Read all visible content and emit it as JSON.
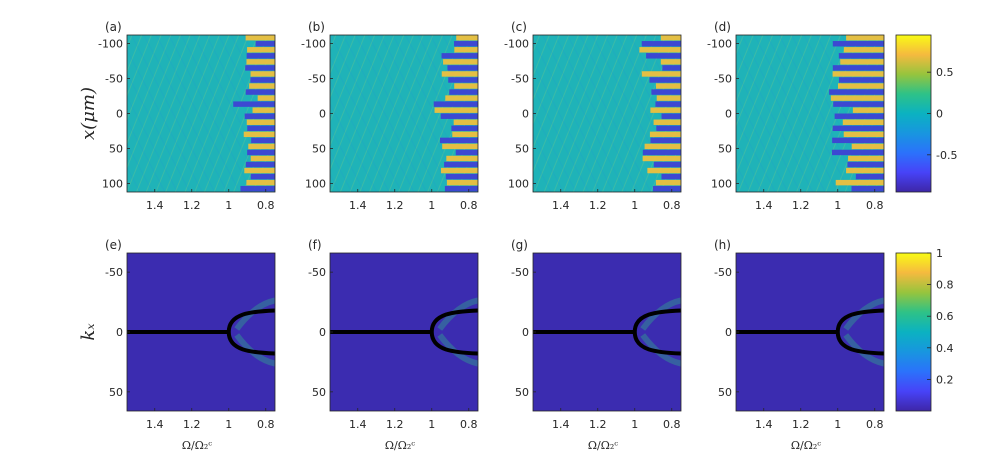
{
  "chart_data": [
    {
      "type": "heatmap",
      "row": "top",
      "ylabel": "x(μm)",
      "xlabel": "",
      "x_reversed": true,
      "y_reversed": true,
      "xlim": [
        1.55,
        0.75
      ],
      "ylim": [
        -112,
        112
      ],
      "xticks": [
        "1.4",
        "1.2",
        "1",
        "0.8"
      ],
      "xtick_values": [
        1.4,
        1.2,
        1.0,
        0.8
      ],
      "yticks": [
        "-100",
        "-50",
        "0",
        "50",
        "100"
      ],
      "ytick_values": [
        -100,
        -50,
        0,
        50,
        100
      ],
      "colorbar": {
        "ticks": [
          "0.5",
          "0",
          "-0.5"
        ],
        "tick_values": [
          0.5,
          0,
          -0.5
        ],
        "range": [
          -0.95,
          0.95
        ]
      },
      "panels": [
        {
          "label": "(a)",
          "onset": 0.93
        },
        {
          "label": "(b)",
          "onset": 0.95
        },
        {
          "label": "(c)",
          "onset": 0.96
        },
        {
          "label": "(d)",
          "onset": 1.02
        }
      ]
    },
    {
      "type": "heatmap",
      "row": "bottom",
      "ylabel": "kₓ",
      "xlabel": "Ω/Ω₂ᶜ",
      "x_reversed": true,
      "y_reversed": true,
      "xlim": [
        1.55,
        0.75
      ],
      "ylim": [
        -66,
        66
      ],
      "xticks": [
        "1.4",
        "1.2",
        "1",
        "0.8"
      ],
      "xtick_values": [
        1.4,
        1.2,
        1.0,
        0.8
      ],
      "yticks": [
        "-50",
        "0",
        "50"
      ],
      "ytick_values": [
        -50,
        0,
        50
      ],
      "colorbar": {
        "ticks": [
          "1",
          "0.8",
          "0.6",
          "0.4",
          "0.2"
        ],
        "tick_values": [
          1,
          0.8,
          0.6,
          0.4,
          0.2
        ],
        "range": [
          0,
          1
        ]
      },
      "bifurcation": {
        "point": 1.0,
        "branch_kx_at_0_75": 18
      },
      "panels": [
        {
          "label": "(e)"
        },
        {
          "label": "(f)"
        },
        {
          "label": "(g)"
        },
        {
          "label": "(h)"
        }
      ]
    }
  ]
}
